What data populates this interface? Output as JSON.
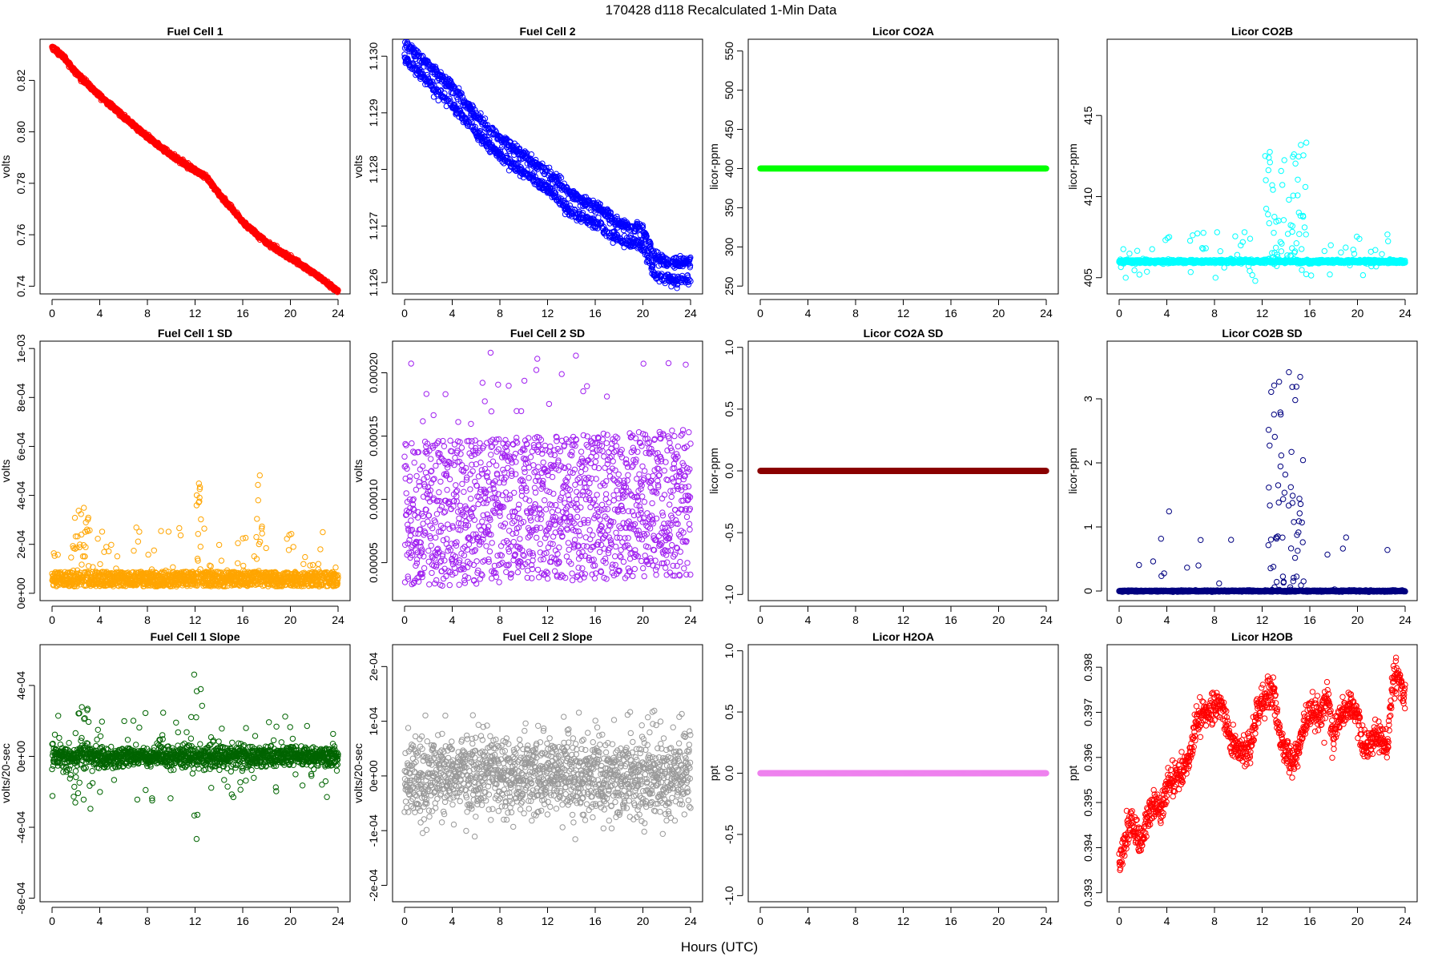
{
  "figure": {
    "title": "170428   d118   Recalculated 1-Min Data",
    "xlabel": "Hours (UTC)"
  },
  "chart_data": [
    {
      "id": "fc1",
      "type": "scatter",
      "title": "Fuel Cell 1",
      "ylabel": "volts",
      "color": "#ff0000",
      "xlim": [
        0,
        24
      ],
      "ylim": [
        0.737,
        0.836
      ],
      "x_ticks": [
        0,
        4,
        8,
        12,
        16,
        20,
        24
      ],
      "x_tick_labels": [
        "0",
        "4",
        "8",
        "12",
        "16",
        "20",
        "24"
      ],
      "y_ticks": [
        0.74,
        0.76,
        0.78,
        0.8,
        0.82
      ],
      "y_tick_labels": [
        "0.74",
        "0.76",
        "0.78",
        "0.80",
        "0.82"
      ],
      "gen": {
        "kind": "anchors",
        "n": 1440,
        "noise": 0.0004,
        "anchors": [
          [
            0,
            0.833
          ],
          [
            1,
            0.829
          ],
          [
            2,
            0.823
          ],
          [
            4,
            0.814
          ],
          [
            6,
            0.806
          ],
          [
            8,
            0.798
          ],
          [
            10,
            0.791
          ],
          [
            12,
            0.785
          ],
          [
            13,
            0.782
          ],
          [
            14,
            0.776
          ],
          [
            16,
            0.765
          ],
          [
            18,
            0.757
          ],
          [
            20,
            0.751
          ],
          [
            22,
            0.745
          ],
          [
            24,
            0.738
          ]
        ]
      }
    },
    {
      "id": "fc2",
      "type": "scatter",
      "title": "Fuel Cell 2",
      "ylabel": "volts",
      "color": "#0000ff",
      "xlim": [
        0,
        24
      ],
      "ylim": [
        1.1258,
        1.1303
      ],
      "x_ticks": [
        0,
        4,
        8,
        12,
        16,
        20,
        24
      ],
      "x_tick_labels": [
        "0",
        "4",
        "8",
        "12",
        "16",
        "20",
        "24"
      ],
      "y_ticks": [
        1.126,
        1.127,
        1.128,
        1.129,
        1.13
      ],
      "y_tick_labels": [
        "1.126",
        "1.127",
        "1.128",
        "1.129",
        "1.130"
      ],
      "gen": {
        "kind": "bands",
        "n": 1440,
        "noise": 5e-05,
        "offset": 0.00015,
        "anchors": [
          [
            0,
            1.1301
          ],
          [
            2,
            1.1297
          ],
          [
            4,
            1.1293
          ],
          [
            6,
            1.1288
          ],
          [
            8,
            1.1284
          ],
          [
            10,
            1.1281
          ],
          [
            12,
            1.1278
          ],
          [
            14,
            1.1274
          ],
          [
            16,
            1.1272
          ],
          [
            18,
            1.1269
          ],
          [
            20,
            1.1268
          ],
          [
            21,
            1.1263
          ],
          [
            22,
            1.1262
          ],
          [
            24,
            1.1262
          ]
        ]
      }
    },
    {
      "id": "co2a",
      "type": "scatter",
      "title": "Licor CO2A",
      "ylabel": "licor-ppm",
      "color": "#00ff00",
      "xlim": [
        0,
        24
      ],
      "ylim": [
        240,
        565
      ],
      "x_ticks": [
        0,
        4,
        8,
        12,
        16,
        20,
        24
      ],
      "x_tick_labels": [
        "0",
        "4",
        "8",
        "12",
        "16",
        "20",
        "24"
      ],
      "y_ticks": [
        250,
        300,
        350,
        400,
        450,
        500,
        550
      ],
      "y_tick_labels": [
        "250",
        "300",
        "350",
        "400",
        "450",
        "500",
        "550"
      ],
      "gen": {
        "kind": "constant",
        "n": 1440,
        "value": 400
      }
    },
    {
      "id": "co2b",
      "type": "scatter",
      "title": "Licor CO2B",
      "ylabel": "licor-ppm",
      "color": "#00ffff",
      "xlim": [
        0,
        24
      ],
      "ylim": [
        404.0,
        419.7
      ],
      "x_ticks": [
        0,
        4,
        8,
        12,
        16,
        20,
        24
      ],
      "x_tick_labels": [
        "0",
        "4",
        "8",
        "12",
        "16",
        "20",
        "24"
      ],
      "y_ticks": [
        405,
        410,
        415
      ],
      "y_tick_labels": [
        "405",
        "410",
        "415"
      ],
      "gen": {
        "kind": "baseline_spikes",
        "n": 1440,
        "base": 406.0,
        "noise": 0.05,
        "spike_rate": 0.03,
        "spike_max": 2.0,
        "peaks": [
          [
            14,
            3.5,
            7.5
          ]
        ],
        "neg": 0.02
      }
    },
    {
      "id": "fc1sd",
      "type": "scatter",
      "title": "Fuel Cell 1 SD",
      "ylabel": "volts",
      "color": "#ffa500",
      "xlim": [
        0,
        24
      ],
      "ylim": [
        -3e-05,
        0.00103
      ],
      "x_ticks": [
        0,
        4,
        8,
        12,
        16,
        20,
        24
      ],
      "x_tick_labels": [
        "0",
        "4",
        "8",
        "12",
        "16",
        "20",
        "24"
      ],
      "y_ticks": [
        0,
        0.0002,
        0.0004,
        0.0006,
        0.0008,
        0.001
      ],
      "y_tick_labels": [
        "0e+00",
        "2e-04",
        "4e-04",
        "6e-04",
        "8e-04",
        "1e-03"
      ],
      "gen": {
        "kind": "positive",
        "n": 1440,
        "base": 7e-05,
        "spread": 6e-05,
        "tail": 0.0002,
        "tail_rate": 0.06,
        "clusters": [
          [
            2.5,
            1.2,
            0.0003
          ],
          [
            12.3,
            0.5,
            0.0004
          ],
          [
            17.4,
            0.5,
            0.0005
          ]
        ]
      }
    },
    {
      "id": "fc2sd",
      "type": "scatter",
      "title": "Fuel Cell 2 SD",
      "ylabel": "volts",
      "color": "#a020f0",
      "xlim": [
        0,
        24
      ],
      "ylim": [
        2e-05,
        0.000225
      ],
      "x_ticks": [
        0,
        4,
        8,
        12,
        16,
        20,
        24
      ],
      "x_tick_labels": [
        "0",
        "4",
        "8",
        "12",
        "16",
        "20",
        "24"
      ],
      "y_ticks": [
        5e-05,
        0.0001,
        0.00015,
        0.0002
      ],
      "y_tick_labels": [
        "0.00005",
        "0.00010",
        "0.00015",
        "0.00020"
      ],
      "gen": {
        "kind": "uniform",
        "n": 1440,
        "lo": 3e-05,
        "hi": 0.000145,
        "drift": 1e-05,
        "extra_hi": 0.00022,
        "extra_rate": 0.02
      }
    },
    {
      "id": "co2asd",
      "type": "scatter",
      "title": "Licor CO2A SD",
      "ylabel": "licor-ppm",
      "color": "#8b0000",
      "xlim": [
        0,
        24
      ],
      "ylim": [
        -1.05,
        1.05
      ],
      "x_ticks": [
        0,
        4,
        8,
        12,
        16,
        20,
        24
      ],
      "x_tick_labels": [
        "0",
        "4",
        "8",
        "12",
        "16",
        "20",
        "24"
      ],
      "y_ticks": [
        -1.0,
        -0.5,
        0.0,
        0.5,
        1.0
      ],
      "y_tick_labels": [
        "-1.0",
        "-0.5",
        "0.0",
        "0.5",
        "1.0"
      ],
      "gen": {
        "kind": "constant",
        "n": 1440,
        "value": 0
      }
    },
    {
      "id": "co2bsd",
      "type": "scatter",
      "title": "Licor CO2B SD",
      "ylabel": "licor-ppm",
      "color": "#000080",
      "xlim": [
        0,
        24
      ],
      "ylim": [
        -0.15,
        3.9
      ],
      "x_ticks": [
        0,
        4,
        8,
        12,
        16,
        20,
        24
      ],
      "x_tick_labels": [
        "0",
        "4",
        "8",
        "12",
        "16",
        "20",
        "24"
      ],
      "y_ticks": [
        0,
        1,
        2,
        3
      ],
      "y_tick_labels": [
        "0",
        "1",
        "2",
        "3"
      ],
      "gen": {
        "kind": "baseline_spikes",
        "n": 1440,
        "base": 0.0,
        "noise": 0.005,
        "spike_rate": 0.015,
        "spike_max": 1.3,
        "peaks": [
          [
            14,
            3.0,
            3.7
          ]
        ],
        "neg": 0
      }
    },
    {
      "id": "fc1slope",
      "type": "scatter",
      "title": "Fuel Cell 1 Slope",
      "ylabel": "volts/20-sec",
      "color": "#006400",
      "xlim": [
        0,
        24
      ],
      "ylim": [
        -0.00082,
        0.00063
      ],
      "x_ticks": [
        0,
        4,
        8,
        12,
        16,
        20,
        24
      ],
      "x_tick_labels": [
        "0",
        "4",
        "8",
        "12",
        "16",
        "20",
        "24"
      ],
      "y_ticks": [
        -0.0008,
        -0.0004,
        0,
        0.0004
      ],
      "y_tick_labels": [
        "-8e-04",
        "-4e-04",
        "0e+00",
        "4e-04"
      ],
      "gen": {
        "kind": "symmetric",
        "n": 1440,
        "sd": 3e-05,
        "tail": 0.00025,
        "tail_rate": 0.07,
        "clusters": [
          [
            2.5,
            2,
            0.0003
          ],
          [
            12.3,
            0.8,
            0.0005
          ]
        ]
      }
    },
    {
      "id": "fc2slope",
      "type": "scatter",
      "title": "Fuel Cell 2 Slope",
      "ylabel": "volts/20-sec",
      "color": "#999999",
      "xlim": [
        0,
        24
      ],
      "ylim": [
        -0.00023,
        0.00024
      ],
      "x_ticks": [
        0,
        4,
        8,
        12,
        16,
        20,
        24
      ],
      "x_tick_labels": [
        "0",
        "4",
        "8",
        "12",
        "16",
        "20",
        "24"
      ],
      "y_ticks": [
        -0.0002,
        -0.0001,
        0,
        0.0001,
        0.0002
      ],
      "y_tick_labels": [
        "-2e-04",
        "-1e-04",
        "0e+00",
        "1e-04",
        "2e-04"
      ],
      "gen": {
        "kind": "symmetric",
        "n": 1440,
        "sd": 3.5e-05,
        "tail": 0.00012,
        "tail_rate": 0.08,
        "clusters": []
      }
    },
    {
      "id": "h2oa",
      "type": "scatter",
      "title": "Licor H2OA",
      "ylabel": "ppt",
      "color": "#ee82ee",
      "xlim": [
        0,
        24
      ],
      "ylim": [
        -1.05,
        1.05
      ],
      "x_ticks": [
        0,
        4,
        8,
        12,
        16,
        20,
        24
      ],
      "x_tick_labels": [
        "0",
        "4",
        "8",
        "12",
        "16",
        "20",
        "24"
      ],
      "y_ticks": [
        -1.0,
        -0.5,
        0.0,
        0.5,
        1.0
      ],
      "y_tick_labels": [
        "-1.0",
        "-0.5",
        "0.0",
        "0.5",
        "1.0"
      ],
      "gen": {
        "kind": "constant",
        "n": 1440,
        "value": 0
      }
    },
    {
      "id": "h2ob",
      "type": "scatter",
      "title": "Licor H2OB",
      "ylabel": "ppt",
      "color": "#ff0000",
      "xlim": [
        0,
        24
      ],
      "ylim": [
        0.3928,
        0.3985
      ],
      "x_ticks": [
        0,
        4,
        8,
        12,
        16,
        20,
        24
      ],
      "x_tick_labels": [
        "0",
        "4",
        "8",
        "12",
        "16",
        "20",
        "24"
      ],
      "y_ticks": [
        0.393,
        0.394,
        0.395,
        0.396,
        0.397,
        0.398
      ],
      "y_tick_labels": [
        "0.393",
        "0.394",
        "0.395",
        "0.396",
        "0.397",
        "0.398"
      ],
      "gen": {
        "kind": "anchors",
        "n": 1100,
        "noise": 0.00018,
        "anchors": [
          [
            0,
            0.3935
          ],
          [
            0.5,
            0.3942
          ],
          [
            1,
            0.3945
          ],
          [
            1.8,
            0.3941
          ],
          [
            2.5,
            0.3948
          ],
          [
            3,
            0.395
          ],
          [
            3.5,
            0.3948
          ],
          [
            4,
            0.3954
          ],
          [
            5,
            0.3956
          ],
          [
            6,
            0.396
          ],
          [
            6.5,
            0.3968
          ],
          [
            7.5,
            0.397
          ],
          [
            8.5,
            0.3972
          ],
          [
            9.5,
            0.3963
          ],
          [
            10.5,
            0.3962
          ],
          [
            11,
            0.3961
          ],
          [
            11.5,
            0.397
          ],
          [
            12.5,
            0.3974
          ],
          [
            13,
            0.3975
          ],
          [
            13.5,
            0.3964
          ],
          [
            14.5,
            0.3958
          ],
          [
            15,
            0.3961
          ],
          [
            15.5,
            0.3967
          ],
          [
            16,
            0.397
          ],
          [
            17,
            0.397
          ],
          [
            17.5,
            0.3975
          ],
          [
            18,
            0.3963
          ],
          [
            18.5,
            0.3969
          ],
          [
            19.5,
            0.3972
          ],
          [
            20,
            0.3969
          ],
          [
            20.5,
            0.3962
          ],
          [
            21.5,
            0.3965
          ],
          [
            22.5,
            0.3962
          ],
          [
            23,
            0.3978
          ],
          [
            23.5,
            0.3979
          ],
          [
            24,
            0.3972
          ]
        ]
      }
    }
  ]
}
